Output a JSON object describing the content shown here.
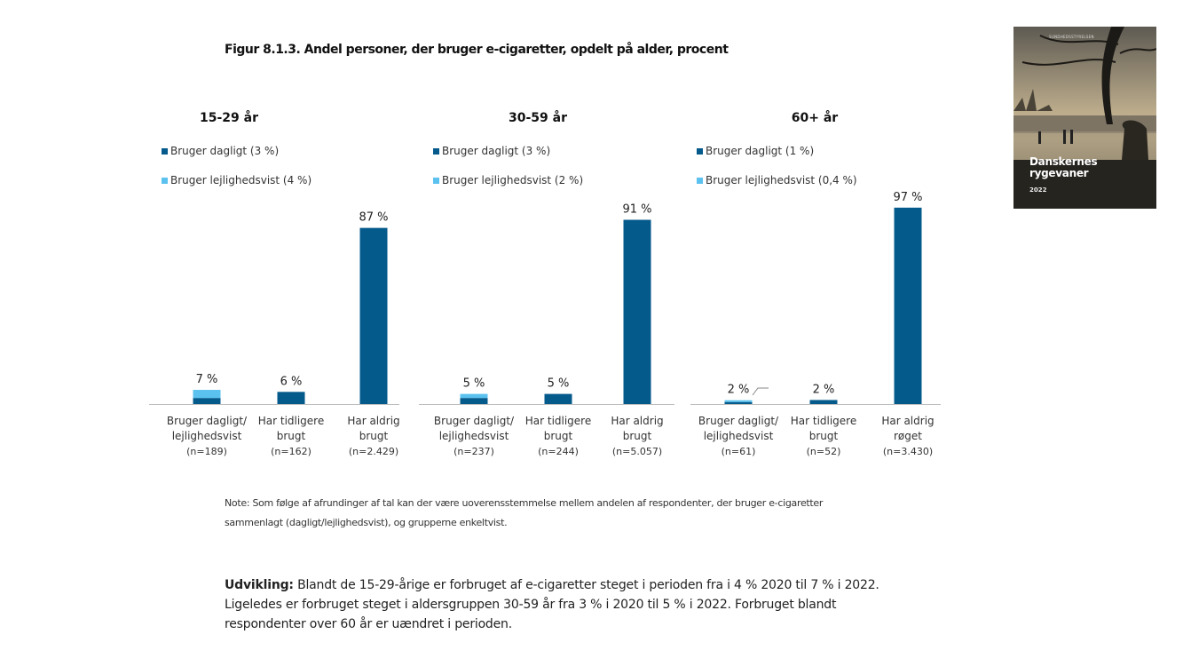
{
  "figure_title": "Figur 8.1.3. Andel personer, der bruger e-cigaretter, opdelt på alder, procent",
  "cover": {
    "title_line1": "Danskernes",
    "title_line2": "rygevaner",
    "year": "2022",
    "publisher": "SUNDHEDSSTYRELSEN"
  },
  "colors": {
    "daily": "#055a8c",
    "occasional": "#5bc2f0",
    "never": "#055a8c",
    "axis": "#bdbdbd"
  },
  "chart_data": [
    {
      "type": "bar",
      "stacked": true,
      "title": "15-29 år",
      "legend": [
        "Bruger dagligt (3 %)",
        "Bruger lejlighedsvist (4 %)"
      ],
      "categories": [
        [
          "Bruger dagligt/",
          "lejlighedsvist",
          "(n=189)"
        ],
        [
          "Har tidligere",
          "brugt",
          "(n=162)"
        ],
        [
          "Har aldrig",
          "brugt",
          "(n=2.429)"
        ]
      ],
      "series": [
        {
          "name": "Bruger dagligt (3 %)",
          "values": [
            3,
            6,
            87
          ]
        },
        {
          "name": "Bruger lejlighedsvist (4 %)",
          "values": [
            4,
            0,
            0
          ]
        }
      ],
      "data_labels": [
        "7 %",
        "6 %",
        "87 %"
      ],
      "ylim": [
        0,
        100
      ]
    },
    {
      "type": "bar",
      "stacked": true,
      "title": "30-59 år",
      "legend": [
        "Bruger dagligt (3 %)",
        "Bruger lejlighedsvist (2 %)"
      ],
      "categories": [
        [
          "Bruger dagligt/",
          "lejlighedsvist",
          "(n=237)"
        ],
        [
          "Har tidligere",
          "brugt",
          "(n=244)"
        ],
        [
          "Har aldrig",
          "brugt",
          "(n=5.057)"
        ]
      ],
      "series": [
        {
          "name": "Bruger dagligt (3 %)",
          "values": [
            3,
            5,
            91
          ]
        },
        {
          "name": "Bruger lejlighedsvist (2 %)",
          "values": [
            2,
            0,
            0
          ]
        }
      ],
      "data_labels": [
        "5 %",
        "5 %",
        "91 %"
      ],
      "ylim": [
        0,
        100
      ]
    },
    {
      "type": "bar",
      "stacked": true,
      "title": "60+ år",
      "legend": [
        "Bruger dagligt (1 %)",
        "Bruger lejlighedsvist (0,4 %)"
      ],
      "categories": [
        [
          "Bruger dagligt/",
          "lejlighedsvist",
          "(n=61)"
        ],
        [
          "Har tidligere",
          "brugt",
          "(n=52)"
        ],
        [
          "Har aldrig",
          "røget",
          "(n=3.430)"
        ]
      ],
      "series": [
        {
          "name": "Bruger dagligt (1 %)",
          "values": [
            1,
            2,
            97
          ]
        },
        {
          "name": "Bruger lejlighedsvist (0,4 %)",
          "values": [
            0.4,
            0,
            0
          ]
        }
      ],
      "data_labels": [
        "2 %",
        "2 %",
        "97 %"
      ],
      "ylim": [
        0,
        100
      ]
    }
  ],
  "note_text": "Note: Som følge af afrundinger af tal kan der være uoverensstemmelse mellem andelen af respondenter, der bruger e-cigaretter sammenlagt (dagligt/lejlighedsvist), og grupperne enkeltvist.",
  "development": {
    "label": "Udvikling:",
    "text": " Blandt de 15-29-årige er forbruget af e-cigaretter steget i perioden fra i 4 % 2020 til 7 % i 2022. Ligeledes er forbruget steget i aldersgruppen 30-59 år fra 3 % i 2020 til 5 % i 2022. Forbruget blandt respondenter over 60 år er uændret i perioden."
  }
}
